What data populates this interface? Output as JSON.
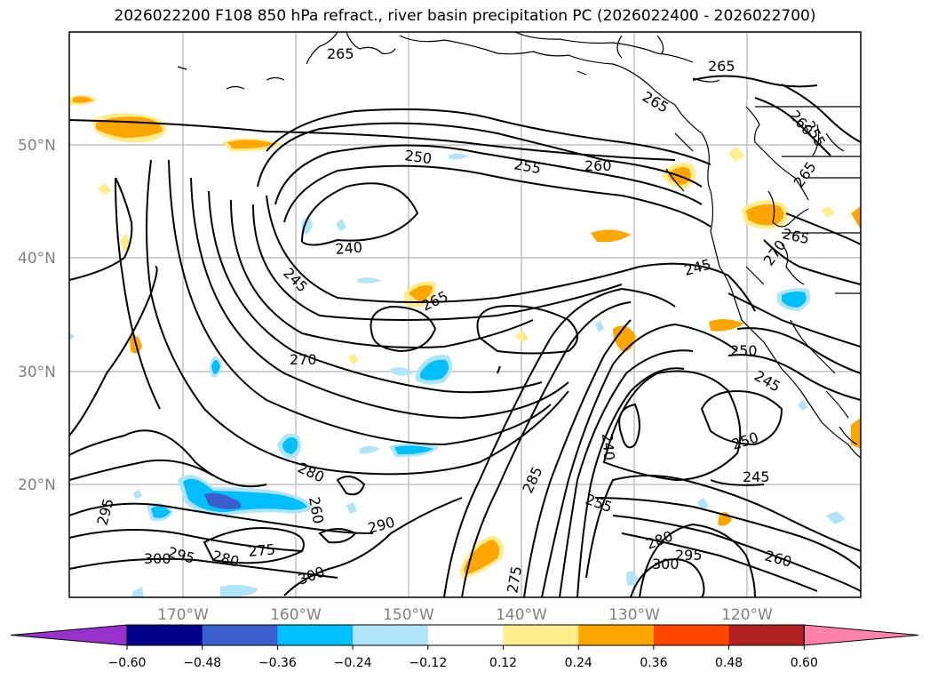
{
  "title": "2026022200 F108 850 hPa refract., river basin precipitation PC (2026022400 - 2026022700)",
  "map": {
    "lat_labels": [
      "50°N",
      "40°N",
      "30°N",
      "20°N"
    ],
    "lon_labels": [
      "170°W",
      "160°W",
      "150°W",
      "140°W",
      "130°W",
      "120°W"
    ],
    "contour_labels": [
      "265",
      "265",
      "265",
      "255",
      "260",
      "265",
      "250",
      "255",
      "260",
      "240",
      "245",
      "265",
      "245",
      "270",
      "270",
      "250",
      "265",
      "245",
      "250",
      "240",
      "245",
      "285",
      "255",
      "280",
      "260",
      "295",
      "290",
      "300",
      "295",
      "280",
      "275",
      "300",
      "275",
      "280",
      "295",
      "300",
      "260"
    ]
  },
  "colorbar": {
    "colors": [
      "#9932cc",
      "#00008b",
      "#3a5fcd",
      "#00bfff",
      "#afe4fa",
      "#ffffff",
      "#ffec8b",
      "#ffa500",
      "#ff4500",
      "#b22222",
      "#ff82ab"
    ],
    "ticks": [
      "−0.60",
      "−0.48",
      "−0.36",
      "−0.24",
      "−0.12",
      "0.12",
      "0.24",
      "0.36",
      "0.48",
      "0.60"
    ]
  }
}
